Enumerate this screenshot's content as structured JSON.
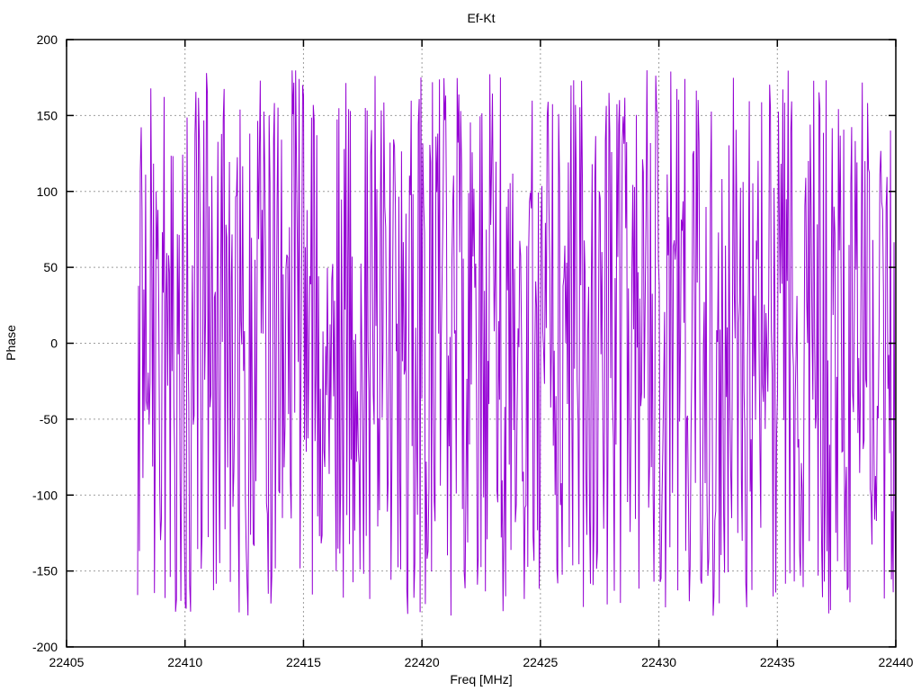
{
  "chart_data": {
    "type": "line",
    "title": "Ef-Kt",
    "xlabel": "Freq [MHz]",
    "ylabel": "Phase",
    "xlim": [
      22405,
      22440
    ],
    "ylim": [
      -200,
      200
    ],
    "xticks": [
      22405,
      22410,
      22415,
      22420,
      22425,
      22430,
      22435,
      22440
    ],
    "yticks": [
      200,
      150,
      100,
      50,
      0,
      -50,
      -100,
      -150,
      -200
    ],
    "grid": true,
    "grid_style": "dotted",
    "legend_position": "none",
    "tick_style": "inward-mirrored",
    "series": [
      {
        "name": "phase",
        "description": "wrapped interferometer phase noise, dense pseudo-random samples spanning the full phase range",
        "color": "#9400d3",
        "x_start": 22408,
        "x_end": 22440,
        "n_points": 860,
        "y_min": -180,
        "y_max": 180,
        "distribution": "uniform",
        "seed": 1973
      }
    ],
    "styles": {
      "line_color": "#9400d3",
      "grid_color": "#9e9e9e",
      "border_color": "#000000",
      "background_color": "#ffffff",
      "text_color": "#000000"
    }
  }
}
